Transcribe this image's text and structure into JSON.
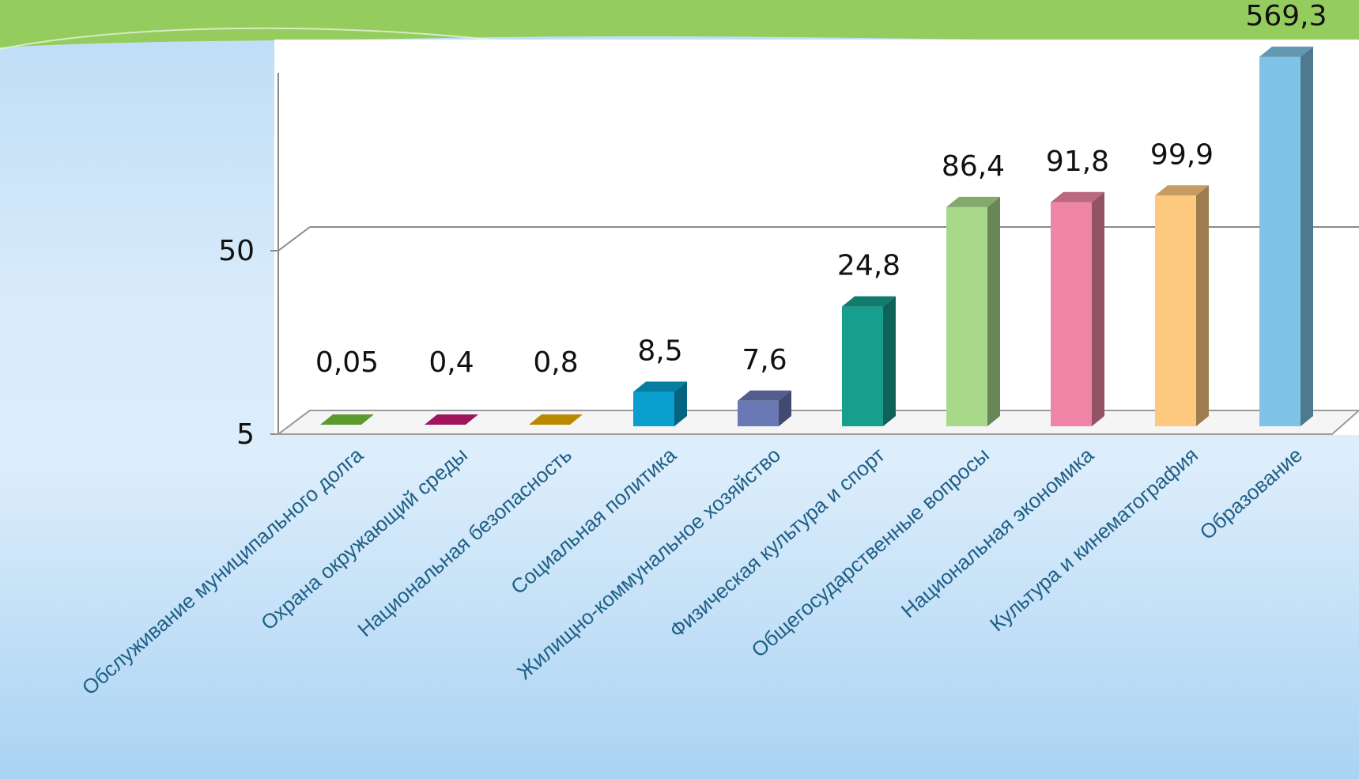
{
  "chart_data": {
    "type": "bar",
    "scale": "log",
    "three_d": true,
    "categories": [
      "Обслуживание муниципального долга",
      "Охрана окружающий среды",
      "Национальная безопасность",
      "Социальная политика",
      "Жилищно-коммунальное хозяйство",
      "Физическая культура и спорт",
      "Общегосударственные вопросы",
      "Национальная экономика",
      "Культура и кинематография",
      "Образование"
    ],
    "values": [
      0.05,
      0.4,
      0.8,
      8.5,
      7.6,
      24.8,
      86.4,
      91.8,
      99.9,
      569.3
    ],
    "value_labels": [
      "0,05",
      "0,4",
      "0,8",
      "8,5",
      "7,6",
      "24,8",
      "86,4",
      "91,8",
      "99,9",
      "569,3"
    ],
    "yticks": [
      {
        "value": 5,
        "label": "5"
      },
      {
        "value": 50,
        "label": "50"
      }
    ],
    "grid": true,
    "colors": [
      "#5a9a2e",
      "#a0135d",
      "#b88a00",
      "#0a9fcf",
      "#6a78b6",
      "#179e8c",
      "#a8d98a",
      "#ee85a6",
      "#fdc97f",
      "#7fc3e6"
    ],
    "title": "",
    "xlabel": "",
    "ylabel": ""
  }
}
